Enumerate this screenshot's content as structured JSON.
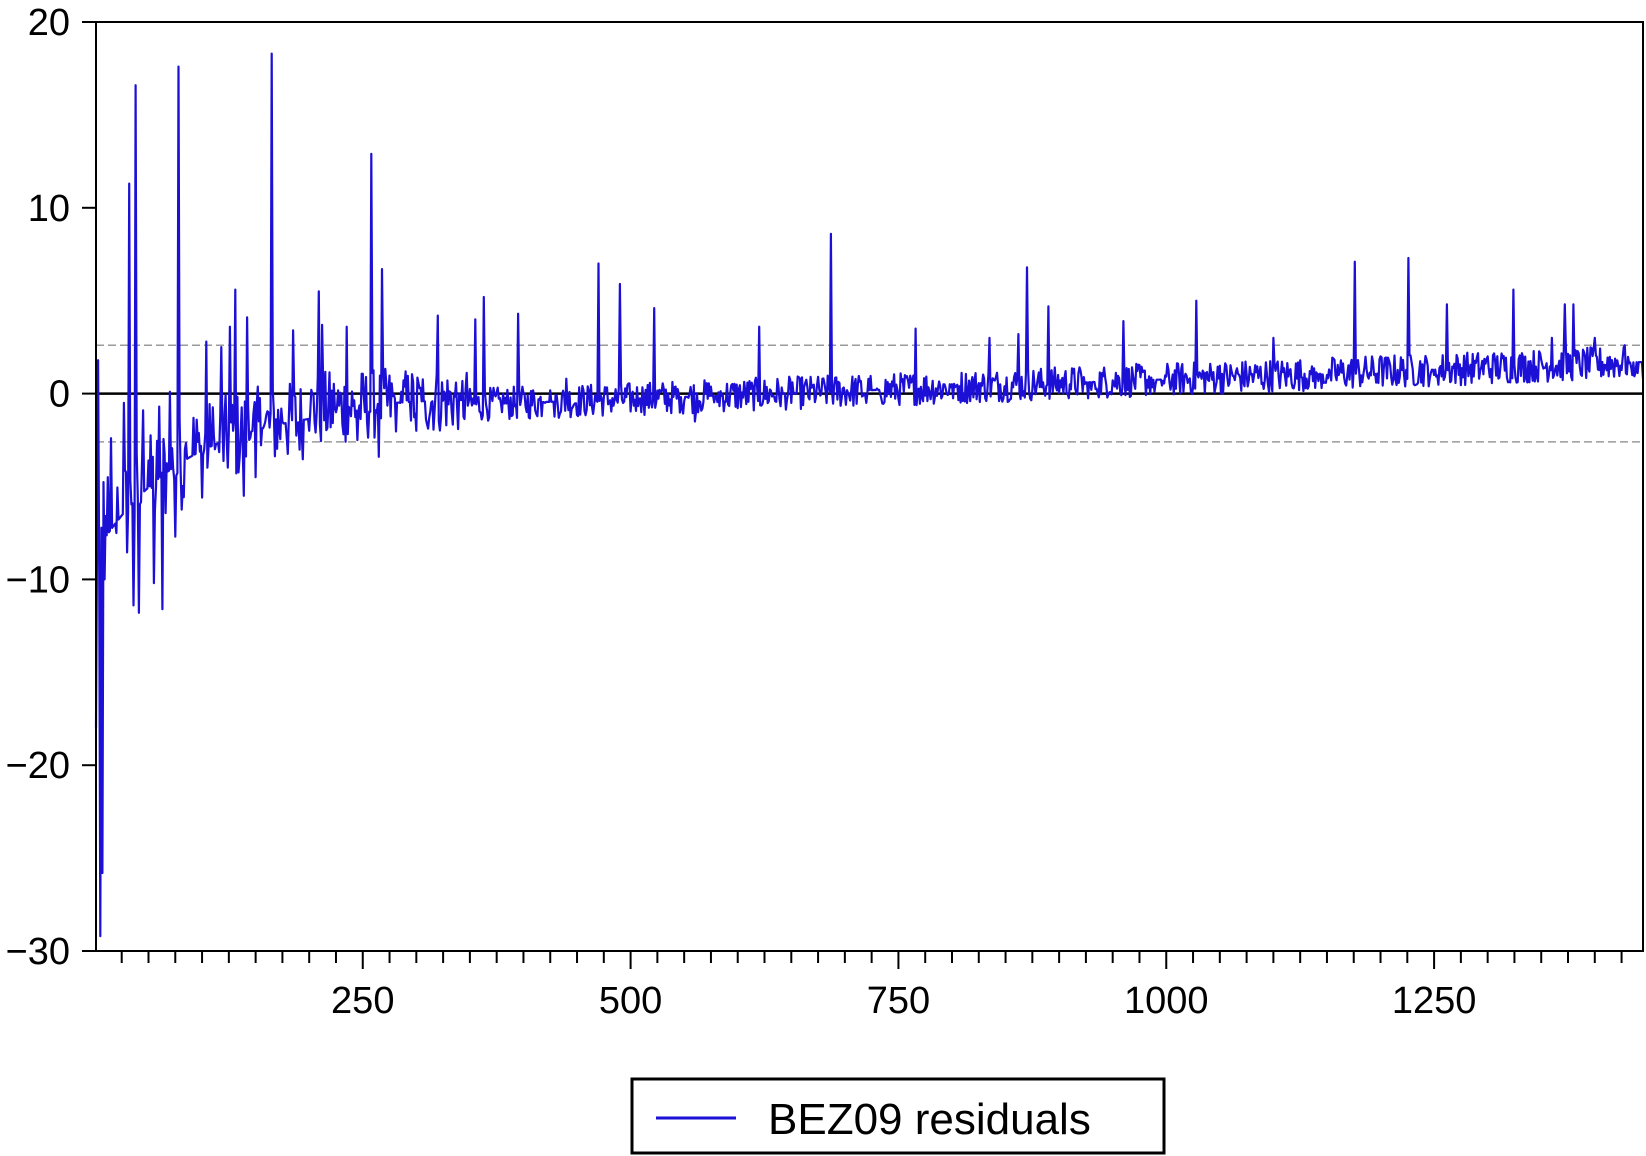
{
  "chart_data": {
    "type": "line",
    "title": "",
    "xlabel": "",
    "ylabel": "",
    "xlim": [
      1,
      1445
    ],
    "ylim": [
      -30,
      20
    ],
    "x_ticks": [
      250,
      500,
      750,
      1000,
      1250
    ],
    "x_tick_labels": [
      "250",
      "500",
      "750",
      "1000",
      "1250"
    ],
    "y_ticks": [
      20,
      10,
      0,
      -10,
      -20,
      -30
    ],
    "y_tick_labels": [
      "20",
      "10",
      "0",
      "−10",
      "−20",
      "−30"
    ],
    "x_minor_tick_step": 25,
    "zero_line": 0,
    "bands": [
      2.6,
      -2.6
    ],
    "grid": false,
    "legend_position": "bottom-center",
    "colors": {
      "series": "#1c0fd6",
      "zero_line": "#000000",
      "band": "#9a9a9a"
    },
    "series": [
      {
        "name": "BEZ09 residuals",
        "approximate_envelope": [
          [
            1,
            -18
          ],
          [
            3,
            1.8
          ],
          [
            5,
            -29.2
          ],
          [
            7,
            -25.8
          ],
          [
            9,
            -10
          ],
          [
            12,
            -4.5
          ],
          [
            15,
            -2.4
          ],
          [
            20,
            -7.5
          ],
          [
            27,
            -0.5
          ],
          [
            32,
            11.3
          ],
          [
            36,
            -11.4
          ],
          [
            38,
            16.6
          ],
          [
            41,
            -11.8
          ],
          [
            45,
            -0.9
          ],
          [
            50,
            -3.6
          ],
          [
            55,
            -10.2
          ],
          [
            60,
            -0.7
          ],
          [
            63,
            -11.6
          ],
          [
            70,
            0.1
          ],
          [
            75,
            -7.7
          ],
          [
            78,
            17.6
          ],
          [
            84,
            -3
          ],
          [
            92,
            -1.3
          ],
          [
            100,
            -5.6
          ],
          [
            104,
            2.8
          ],
          [
            112,
            -3
          ],
          [
            118,
            2.5
          ],
          [
            126,
            3.6
          ],
          [
            131,
            5.6
          ],
          [
            139,
            -5.5
          ],
          [
            142,
            4.1
          ],
          [
            150,
            -4.5
          ],
          [
            159,
            -1.5
          ],
          [
            165,
            18.3
          ],
          [
            175,
            -1.5
          ],
          [
            185,
            3.4
          ],
          [
            200,
            -2
          ],
          [
            209,
            5.5
          ],
          [
            212,
            3.7
          ],
          [
            225,
            -1
          ],
          [
            235,
            3.6
          ],
          [
            245,
            -2.5
          ],
          [
            258,
            12.9
          ],
          [
            265,
            -3.4
          ],
          [
            268,
            6.7
          ],
          [
            285,
            -0.5
          ],
          [
            300,
            -2
          ],
          [
            320,
            4.2
          ],
          [
            340,
            0
          ],
          [
            355,
            4
          ],
          [
            363,
            5.2
          ],
          [
            380,
            -1
          ],
          [
            395,
            4.3
          ],
          [
            420,
            -0.5
          ],
          [
            440,
            0.8
          ],
          [
            470,
            7
          ],
          [
            480,
            -0.5
          ],
          [
            490,
            5.9
          ],
          [
            510,
            -1
          ],
          [
            522,
            4.6
          ],
          [
            560,
            -1.5
          ],
          [
            620,
            3.6
          ],
          [
            650,
            -0.5
          ],
          [
            687,
            8.6
          ],
          [
            720,
            -0.5
          ],
          [
            766,
            3.5
          ],
          [
            800,
            0.5
          ],
          [
            835,
            3
          ],
          [
            862,
            3.2
          ],
          [
            870,
            6.8
          ],
          [
            890,
            4.7
          ],
          [
            930,
            0.2
          ],
          [
            960,
            3.9
          ],
          [
            990,
            0.5
          ],
          [
            1028,
            5
          ],
          [
            1050,
            1.5
          ],
          [
            1100,
            3
          ],
          [
            1150,
            1
          ],
          [
            1176,
            7.1
          ],
          [
            1200,
            2
          ],
          [
            1226,
            7.3
          ],
          [
            1250,
            1
          ],
          [
            1262,
            4.8
          ],
          [
            1300,
            2
          ],
          [
            1324,
            5.6
          ],
          [
            1360,
            3
          ],
          [
            1372,
            4.8
          ],
          [
            1380,
            4.8
          ],
          [
            1400,
            3
          ],
          [
            1428,
            2.6
          ],
          [
            1445,
            0.8
          ]
        ]
      }
    ]
  }
}
